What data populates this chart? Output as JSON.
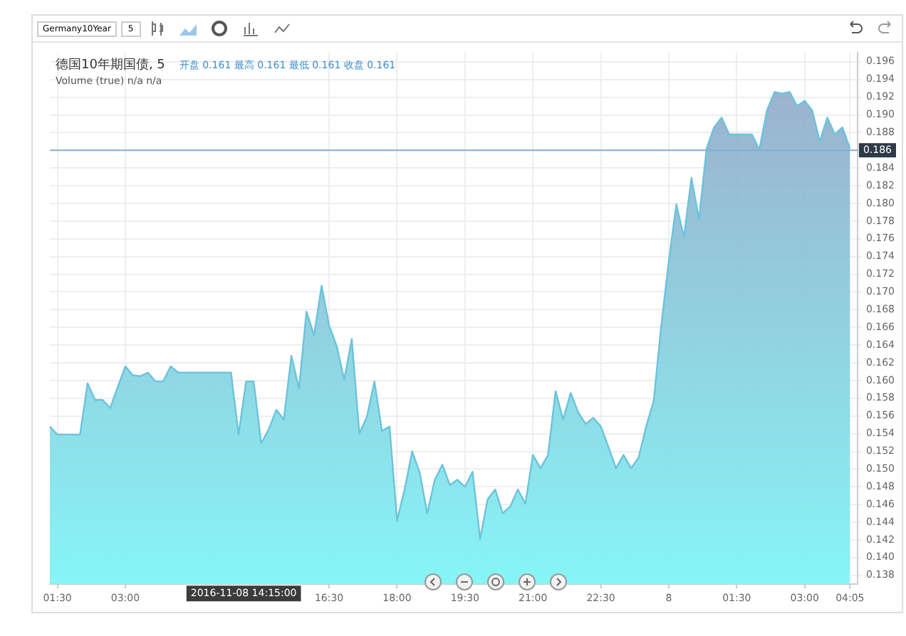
{
  "chart_data": {
    "type": "area",
    "title": "德国10年期国债, 5",
    "subtitle": "开盘 0.161 最高 0.161 最低 0.161 收盘 0.161",
    "annotations": [
      "Volume (true) n/a n/a",
      "2016-11-08 14:15:00",
      "Germany10Year",
      "5"
    ],
    "categories": [
      null,
      "01:30",
      null,
      null,
      null,
      null,
      null,
      null,
      null,
      null,
      "03:00",
      null,
      null,
      null,
      null,
      null,
      null,
      null,
      null,
      null,
      null,
      null,
      null,
      null,
      null,
      null,
      null,
      null,
      null,
      null,
      null,
      null,
      null,
      null,
      null,
      null,
      null,
      "16:30",
      null,
      null,
      null,
      null,
      null,
      null,
      null,
      null,
      "18:00",
      null,
      null,
      null,
      null,
      null,
      null,
      null,
      null,
      "19:30",
      null,
      null,
      null,
      null,
      null,
      null,
      null,
      null,
      "21:00",
      null,
      null,
      null,
      null,
      null,
      null,
      null,
      null,
      "22:30",
      null,
      null,
      null,
      null,
      null,
      null,
      null,
      null,
      "8",
      null,
      null,
      null,
      null,
      null,
      null,
      null,
      null,
      "01:30",
      null,
      null,
      null,
      null,
      null,
      null,
      null,
      null,
      "03:00",
      null,
      null,
      null,
      null,
      null,
      "04:05",
      null
    ],
    "series": [
      {
        "color": "#6cc3dc",
        "values": [
          0.1548,
          0.1539,
          0.1539,
          0.1539,
          0.1539,
          0.1597,
          0.1578,
          0.1578,
          0.1569,
          0.1593,
          0.1616,
          0.1606,
          0.1605,
          0.1609,
          0.1599,
          0.1599,
          0.1616,
          0.1609,
          0.1609,
          0.1609,
          0.1609,
          0.1609,
          0.1609,
          0.1609,
          0.1609,
          0.1539,
          0.1599,
          0.1599,
          0.1529,
          0.1545,
          0.1567,
          0.1556,
          0.1628,
          0.1591,
          0.1678,
          0.1651,
          0.1707,
          0.1662,
          0.1639,
          0.1601,
          0.1647,
          0.154,
          0.1559,
          0.1599,
          0.1543,
          0.1548,
          0.1442,
          0.1477,
          0.152,
          0.1496,
          0.145,
          0.1488,
          0.1505,
          0.1482,
          0.1488,
          0.148,
          0.1497,
          0.1421,
          0.1466,
          0.1477,
          0.145,
          0.1458,
          0.1477,
          0.1461,
          0.1516,
          0.1501,
          0.1516,
          0.1588,
          0.1556,
          0.1586,
          0.1564,
          0.1551,
          0.1558,
          0.1548,
          0.1525,
          0.1501,
          0.1516,
          0.1501,
          0.1513,
          0.1548,
          0.1577,
          0.1662,
          0.1735,
          0.1799,
          0.1762,
          0.1829,
          0.1782,
          0.1862,
          0.1886,
          0.1897,
          0.1878,
          0.1878,
          0.1878,
          0.1878,
          0.1861,
          0.1905,
          0.1926,
          0.1924,
          0.1926,
          0.191,
          0.1916,
          0.1905,
          0.187,
          0.1897,
          0.1878,
          0.1886,
          0.1862,
          null
        ]
      }
    ],
    "ylim": [
      0.137,
      0.197
    ],
    "yticks": [
      0.138,
      {
        "value": 0.14,
        "label": "0.140"
      },
      0.142,
      0.144,
      0.146,
      0.148,
      {
        "value": 0.15,
        "label": "0.150"
      },
      0.152,
      0.154,
      0.156,
      0.158,
      {
        "value": 0.16,
        "label": "0.160"
      },
      0.162,
      0.164,
      0.166,
      0.168,
      {
        "value": 0.17,
        "label": "0.170"
      },
      0.172,
      0.174,
      0.176,
      0.178,
      {
        "value": 0.18,
        "label": "0.180"
      },
      0.182,
      0.184,
      0.186,
      0.188,
      {
        "value": 0.19,
        "label": "0.190"
      },
      0.192,
      0.194,
      0.196
    ],
    "ref_lines": [
      {
        "axis": "y",
        "value": 0.186,
        "label": "0.186",
        "color": "#7fb0d6"
      }
    ],
    "grid": true,
    "legend": false,
    "marker": "none",
    "line_style": "solid"
  }
}
